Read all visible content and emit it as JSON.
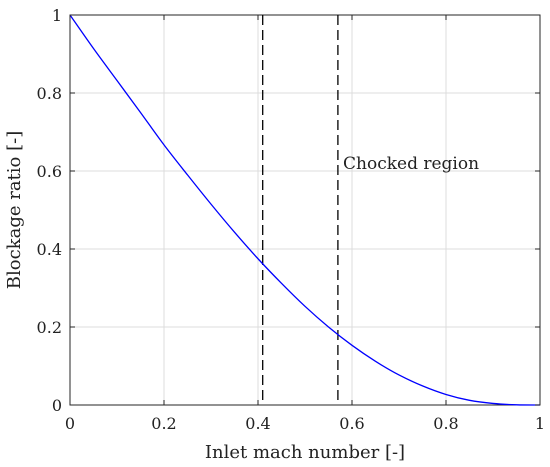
{
  "chart_data": {
    "type": "line",
    "title": "",
    "xlabel": "Inlet mach number [-]",
    "ylabel": "Blockage ratio [-]",
    "xlim": [
      0,
      1
    ],
    "ylim": [
      0,
      1
    ],
    "grid": true,
    "x_ticks": [
      0,
      0.2,
      0.4,
      0.6,
      0.8,
      1
    ],
    "x_tick_labels": [
      "0",
      "0.2",
      "0.4",
      "0.6",
      "0.8",
      "1"
    ],
    "y_ticks": [
      0,
      0.2,
      0.4,
      0.6,
      0.8,
      1
    ],
    "y_tick_labels": [
      "0",
      "0.2",
      "0.4",
      "0.6",
      "0.8",
      "1"
    ],
    "series": [
      {
        "color": "#0000ff",
        "x": [
          0,
          0.05,
          0.1,
          0.15,
          0.2,
          0.25,
          0.3,
          0.35,
          0.4,
          0.45,
          0.5,
          0.55,
          0.6,
          0.65,
          0.7,
          0.75,
          0.8,
          0.85,
          0.9,
          0.95,
          1.0
        ],
        "y": [
          1.0,
          0.914,
          0.832,
          0.75,
          0.667,
          0.59,
          0.515,
          0.443,
          0.375,
          0.312,
          0.253,
          0.2,
          0.153,
          0.112,
          0.077,
          0.049,
          0.027,
          0.012,
          0.004,
          0.0005,
          0.0
        ]
      }
    ],
    "vlines": [
      {
        "x": 0.41,
        "style": "dashed",
        "color": "#000000"
      },
      {
        "x": 0.57,
        "style": "dashed",
        "color": "#000000"
      }
    ],
    "annotations": [
      {
        "text": "Chocked region",
        "x": 0.6,
        "y": 0.62
      }
    ]
  }
}
